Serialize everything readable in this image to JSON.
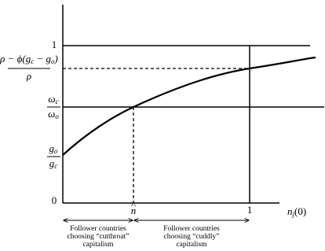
{
  "y_labels": {
    "one": "1",
    "top_ratio": {
      "numerator": [
        {
          "text": "ρ − ϕ(g"
        },
        {
          "sub": "c"
        },
        {
          "text": " − g"
        },
        {
          "sub": "o"
        },
        {
          "text": ")"
        }
      ],
      "denominator": "ρ"
    },
    "omega_ratio": {
      "numerator": {
        "text": "ω",
        "sub": "c"
      },
      "denominator": {
        "text": "ω",
        "sub": "o"
      }
    },
    "g_ratio": {
      "numerator": {
        "text": "g",
        "sub": "o"
      },
      "denominator": {
        "text": "g",
        "sub": "c"
      }
    },
    "zero": "0"
  },
  "x_labels": {
    "n_hat": "n",
    "hat": "^",
    "one": "1",
    "axis": {
      "text": "n",
      "sub": "j",
      "suffix": "(0)"
    }
  },
  "annotations": [
    [
      "Follower countries",
      "choosing “cutthroat”",
      "capitalism"
    ],
    [
      "Follower countries",
      "choosing “cuddly”",
      "capitalism"
    ]
  ]
}
